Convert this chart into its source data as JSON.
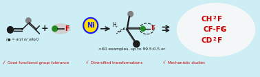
{
  "bg_color": "#ceeef5",
  "dark": "#1a1a1a",
  "gray": "#808080",
  "green": "#228B22",
  "red": "#cc0000",
  "blue": "#1a1aff",
  "yellow": "#FFE000",
  "white": "#f8f8f8",
  "silver": "#d0d0d0",
  "bottom_texts": [
    "√  Good functional group tolerance",
    "√  Diversified transformations",
    "√  Mechanistic studies"
  ],
  "examples_text": ">60 examples, up to 99.5:0.5 er",
  "ni_label": "Ni",
  "f_label": "F",
  "h_label": "H,",
  "label_arylalkyl": "(● = aryl or alkyl)"
}
